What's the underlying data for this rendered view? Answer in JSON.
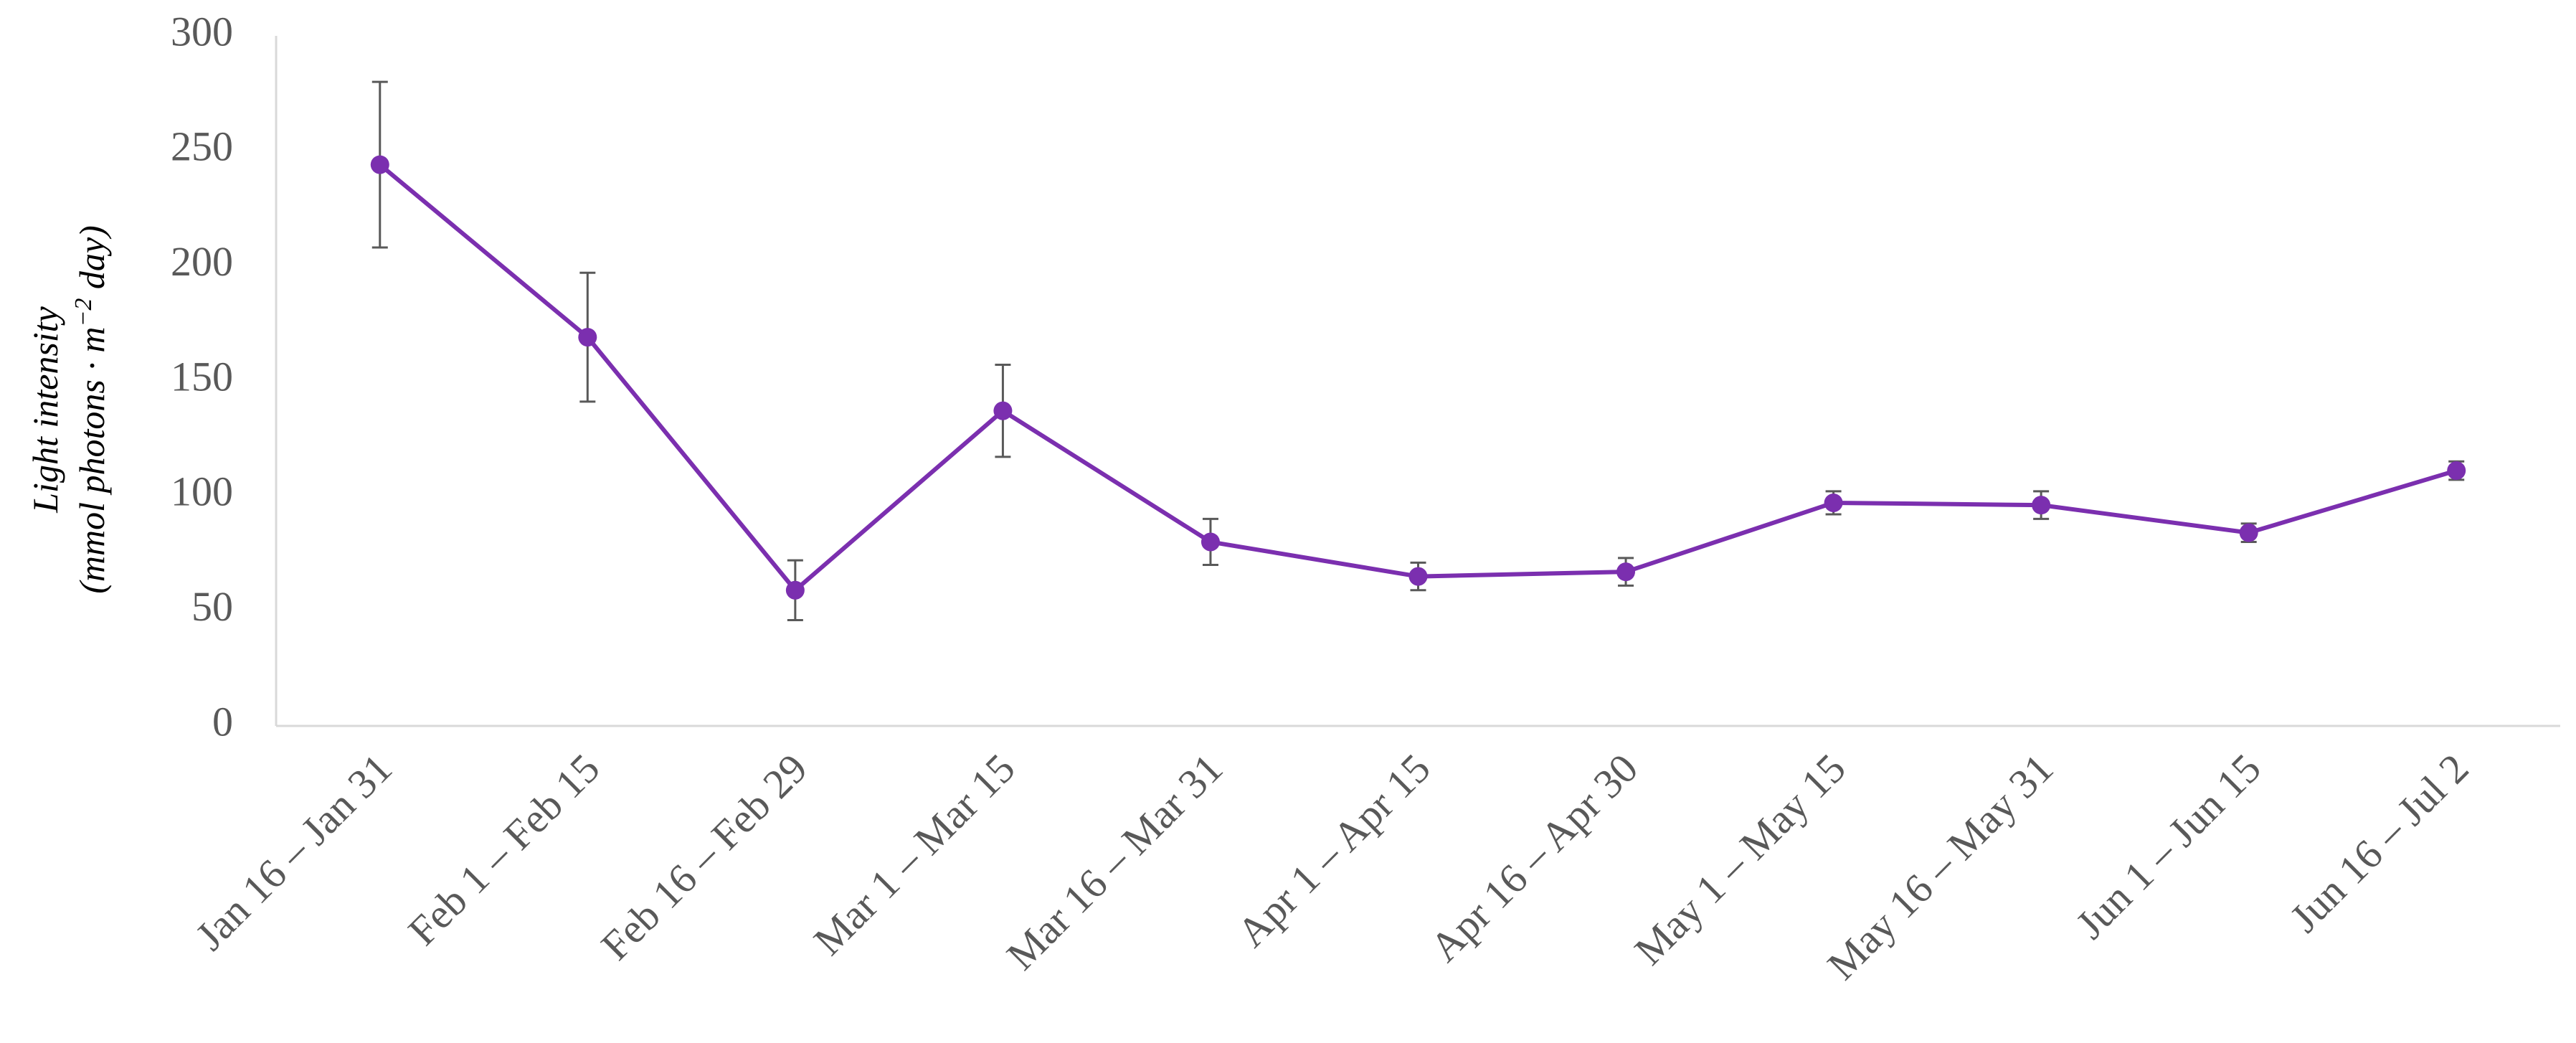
{
  "chart_data": {
    "type": "line",
    "title": "",
    "xlabel": "",
    "ylabel_line1": "Light intensity",
    "ylabel_line2_prefix": "(mmol photons · m",
    "ylabel_line2_sup": "−2",
    "ylabel_line2_suffix": " day)",
    "ylim": [
      0,
      300
    ],
    "yticks": [
      0,
      50,
      100,
      150,
      200,
      250,
      300
    ],
    "grid": false,
    "legend": "none",
    "line_color": "#7B2FAF",
    "errorbar_color": "#595959",
    "categories": [
      "Jan 16 – Jan 31",
      "Feb 1 – Feb 15",
      "Feb 16 – Feb 29",
      "Mar 1 – Mar 15",
      "Mar 16 – Mar 31",
      "Apr 1 – Apr 15",
      "Apr 16 – Apr 30",
      "May 1 – May 15",
      "May 16 – May 31",
      "Jun 1 – Jun 15",
      "Jun 16 – Jul 2"
    ],
    "series": [
      {
        "values": [
          244,
          169,
          59,
          137,
          80,
          65,
          67,
          97,
          96,
          84,
          111
        ],
        "errors": [
          36,
          28,
          13,
          20,
          10,
          6,
          6,
          5,
          6,
          4,
          4
        ]
      }
    ]
  }
}
